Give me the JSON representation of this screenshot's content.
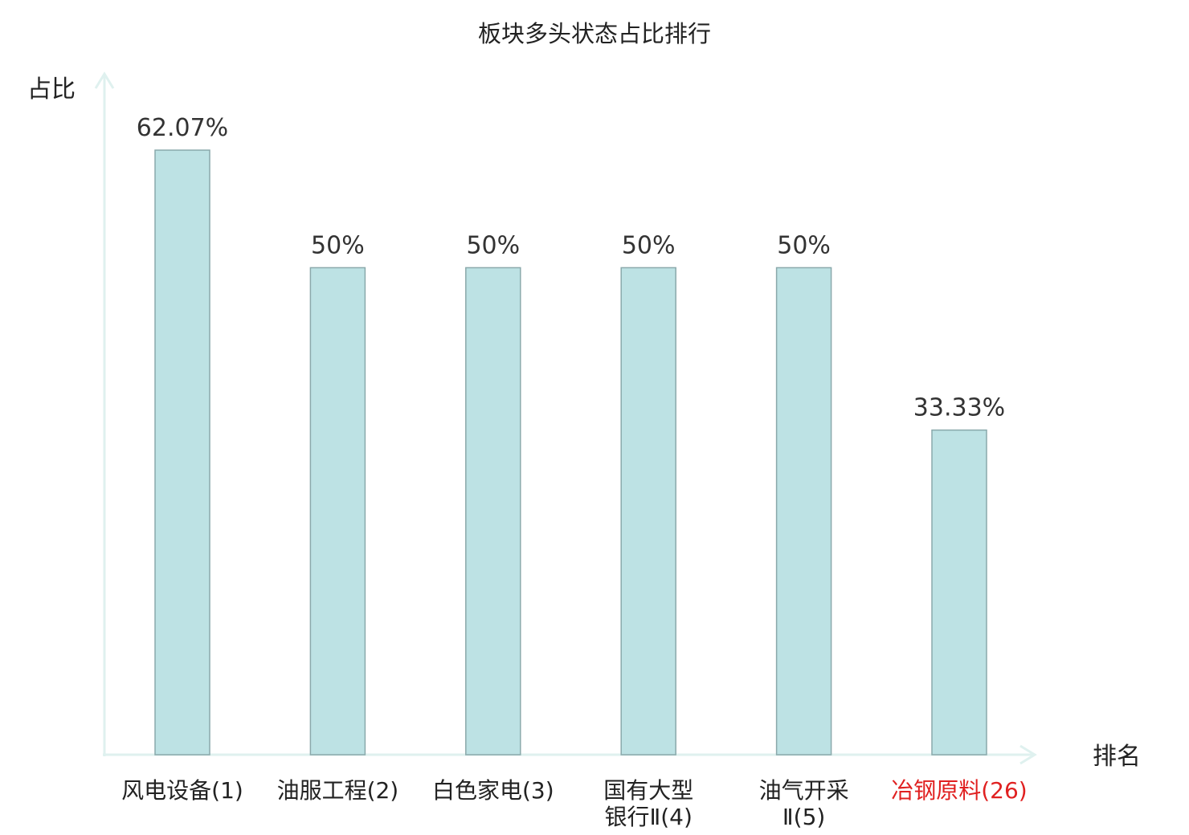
{
  "chart_data": {
    "type": "bar",
    "title": "板块多头状态占比排行",
    "ylabel": "占比",
    "xlabel": "排名",
    "ylim": [
      0,
      70
    ],
    "grid": false,
    "categories": [
      {
        "name": "风电设备",
        "rank": "(1)",
        "lines": [
          "风电设备(1)"
        ],
        "highlight": false
      },
      {
        "name": "油服工程",
        "rank": "(2)",
        "lines": [
          "油服工程(2)"
        ],
        "highlight": false
      },
      {
        "name": "白色家电",
        "rank": "(3)",
        "lines": [
          "白色家电(3)"
        ],
        "highlight": false
      },
      {
        "name": "国有大型银行Ⅱ",
        "rank": "(4)",
        "lines": [
          "国有大型",
          "银行Ⅱ(4)"
        ],
        "highlight": false
      },
      {
        "name": "油气开采Ⅱ",
        "rank": "(5)",
        "lines": [
          "油气开采",
          "Ⅱ(5)"
        ],
        "highlight": false
      },
      {
        "name": "冶钢原料",
        "rank": "(26)",
        "lines": [
          "冶钢原料(26)"
        ],
        "highlight": true
      }
    ],
    "values": [
      62.07,
      50,
      50,
      50,
      50,
      33.33
    ],
    "value_labels": [
      "62.07%",
      "50%",
      "50%",
      "50%",
      "50%",
      "33.33%"
    ],
    "colors": {
      "bar_fill": "#bde2e4",
      "bar_stroke": "#8aa9ab",
      "axis": "#dff1ef",
      "text": "#222222",
      "highlight": "#e02020"
    }
  }
}
